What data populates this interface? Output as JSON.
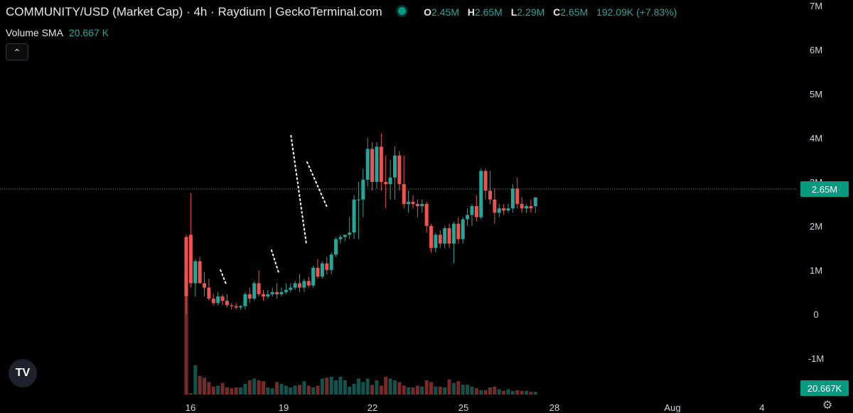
{
  "header": {
    "title": "COMMUNITY/USD (Market Cap) · 4h · Raydium | GeckoTerminal.com",
    "ohlc": {
      "o_label": "O",
      "o": "2.45M",
      "h_label": "H",
      "h": "2.65M",
      "l_label": "L",
      "l": "2.29M",
      "c_label": "C",
      "c": "2.65M",
      "change": "192.09K (+7.83%)"
    },
    "volume_sma_label": "Volume SMA",
    "volume_sma_value": "20.667 K",
    "collapse_icon": "chevron-up-icon",
    "logo_text": "TV"
  },
  "colors": {
    "up": "#26a69a",
    "down": "#ef5350",
    "badge": "#089981",
    "background": "#000000"
  },
  "chart_data": {
    "type": "candlestick",
    "y_ticks": [
      "7M",
      "6M",
      "5M",
      "4M",
      "3M",
      "2M",
      "1M",
      "0",
      "-1M"
    ],
    "y_tick_values": [
      7,
      6,
      5,
      4,
      3,
      2,
      1,
      0,
      -1
    ],
    "x_ticks": [
      "16",
      "19",
      "22",
      "25",
      "28",
      "Aug",
      "4"
    ],
    "ylim": [
      -2.23,
      7.13
    ],
    "y_unit": "M",
    "last_price": 2.65,
    "last_price_label": "2.65M",
    "volume_sma_badge": "20.667K",
    "candles": [
      [
        1.75,
        1.8,
        0,
        0.4
      ],
      [
        1.8,
        2.75,
        0.6,
        0.7
      ],
      [
        0.7,
        1.25,
        0.4,
        1.2
      ],
      [
        1.2,
        1.3,
        0.7,
        0.7
      ],
      [
        0.7,
        0.95,
        0.4,
        0.6
      ],
      [
        0.6,
        0.8,
        0.3,
        0.35
      ],
      [
        0.35,
        0.45,
        0.2,
        0.25
      ],
      [
        0.25,
        0.5,
        0.2,
        0.4
      ],
      [
        0.4,
        0.45,
        0.2,
        0.3
      ],
      [
        0.3,
        0.45,
        0.15,
        0.2
      ],
      [
        0.2,
        0.25,
        0.1,
        0.18
      ],
      [
        0.18,
        0.25,
        0.1,
        0.15
      ],
      [
        0.15,
        0.2,
        0.1,
        0.18
      ],
      [
        0.18,
        0.5,
        0.1,
        0.45
      ],
      [
        0.45,
        0.6,
        0.25,
        0.35
      ],
      [
        0.35,
        0.75,
        0.3,
        0.7
      ],
      [
        0.7,
        1.0,
        0.4,
        0.45
      ],
      [
        0.45,
        0.55,
        0.3,
        0.4
      ],
      [
        0.4,
        0.55,
        0.35,
        0.45
      ],
      [
        0.45,
        0.6,
        0.4,
        0.5
      ],
      [
        0.5,
        0.7,
        0.35,
        0.45
      ],
      [
        0.45,
        0.6,
        0.4,
        0.5
      ],
      [
        0.5,
        0.7,
        0.45,
        0.55
      ],
      [
        0.55,
        0.7,
        0.5,
        0.6
      ],
      [
        0.6,
        0.75,
        0.55,
        0.7
      ],
      [
        0.7,
        0.9,
        0.5,
        0.6
      ],
      [
        0.6,
        0.8,
        0.5,
        0.75
      ],
      [
        0.75,
        0.85,
        0.6,
        0.65
      ],
      [
        0.65,
        1.1,
        0.6,
        1.05
      ],
      [
        1.05,
        1.25,
        0.8,
        0.85
      ],
      [
        0.85,
        1.2,
        0.8,
        1.15
      ],
      [
        1.15,
        1.3,
        0.9,
        1.0
      ],
      [
        1.0,
        1.4,
        0.9,
        1.35
      ],
      [
        1.35,
        1.75,
        1.3,
        1.7
      ],
      [
        1.7,
        1.8,
        1.6,
        1.75
      ],
      [
        1.75,
        1.8,
        1.65,
        1.8
      ],
      [
        1.8,
        2.2,
        1.7,
        1.85
      ],
      [
        1.85,
        2.7,
        1.7,
        2.6
      ],
      [
        2.6,
        3.0,
        1.7,
        2.6
      ],
      [
        2.6,
        3.3,
        2.2,
        3.05
      ],
      [
        3.05,
        4.0,
        2.9,
        3.75
      ],
      [
        3.75,
        3.9,
        2.8,
        3.0
      ],
      [
        3.0,
        3.9,
        2.85,
        3.8
      ],
      [
        3.8,
        4.1,
        2.8,
        3.0
      ],
      [
        3.0,
        3.6,
        2.4,
        2.95
      ],
      [
        2.95,
        3.5,
        2.6,
        3.1
      ],
      [
        3.1,
        3.8,
        2.6,
        3.6
      ],
      [
        3.6,
        3.7,
        2.8,
        2.95
      ],
      [
        2.95,
        3.6,
        2.4,
        2.5
      ],
      [
        2.5,
        2.8,
        2.3,
        2.55
      ],
      [
        2.55,
        2.7,
        2.4,
        2.5
      ],
      [
        2.5,
        2.6,
        2.2,
        2.45
      ],
      [
        2.45,
        2.6,
        2.3,
        2.5
      ],
      [
        2.5,
        2.55,
        1.85,
        2.0
      ],
      [
        2.0,
        2.05,
        1.4,
        1.5
      ],
      [
        1.5,
        1.85,
        1.4,
        1.8
      ],
      [
        1.8,
        1.9,
        1.5,
        1.6
      ],
      [
        1.6,
        2.0,
        1.5,
        1.95
      ],
      [
        1.95,
        2.05,
        1.5,
        1.6
      ],
      [
        1.6,
        2.1,
        1.15,
        2.05
      ],
      [
        2.05,
        2.2,
        1.6,
        1.7
      ],
      [
        1.7,
        2.2,
        1.6,
        2.15
      ],
      [
        2.15,
        2.4,
        2.0,
        2.25
      ],
      [
        2.25,
        2.5,
        2.0,
        2.45
      ],
      [
        2.45,
        2.7,
        2.1,
        2.2
      ],
      [
        2.2,
        3.3,
        2.15,
        3.25
      ],
      [
        3.25,
        3.3,
        2.6,
        2.8
      ],
      [
        2.8,
        3.25,
        2.5,
        2.6
      ],
      [
        2.6,
        2.85,
        2.05,
        2.3
      ],
      [
        2.3,
        2.5,
        2.2,
        2.4
      ],
      [
        2.4,
        2.5,
        2.25,
        2.35
      ],
      [
        2.35,
        2.5,
        2.3,
        2.4
      ],
      [
        2.4,
        2.95,
        2.3,
        2.85
      ],
      [
        2.85,
        3.1,
        2.4,
        2.5
      ],
      [
        2.5,
        2.65,
        2.3,
        2.4
      ],
      [
        2.4,
        2.5,
        2.3,
        2.45
      ],
      [
        2.45,
        2.6,
        2.3,
        2.4
      ],
      [
        2.45,
        2.65,
        2.29,
        2.65
      ]
    ],
    "volumes": [
      110,
      1.42,
      33,
      21,
      19,
      14,
      9,
      10,
      13,
      8,
      7,
      8,
      8,
      12,
      16,
      18,
      16,
      15,
      8,
      7,
      14,
      12,
      10,
      8,
      10,
      11,
      15,
      10,
      8,
      10,
      18,
      19,
      20,
      16,
      20,
      16,
      9,
      12,
      18,
      14,
      18,
      11,
      16,
      10,
      20,
      18,
      16,
      14,
      10,
      8,
      8,
      10,
      9,
      16,
      14,
      9,
      9,
      8,
      17,
      13,
      15,
      11,
      11,
      9,
      7,
      5,
      5,
      8,
      9,
      6,
      4,
      6,
      4,
      5,
      4,
      4,
      3,
      3
    ],
    "trendlines": [
      {
        "x": [
          7.55,
          8.9
        ],
        "y": [
          1.0,
          0.65
        ],
        "style": "dotted"
      },
      {
        "x": [
          18.8,
          20.5
        ],
        "y": [
          1.45,
          0.9
        ],
        "style": "dotted"
      },
      {
        "x": [
          23.1,
          26.45
        ],
        "y": [
          4.05,
          1.62
        ],
        "style": "dotted"
      },
      {
        "x": [
          26.65,
          30.95
        ],
        "y": [
          3.45,
          2.45
        ],
        "style": "dotted"
      }
    ]
  }
}
